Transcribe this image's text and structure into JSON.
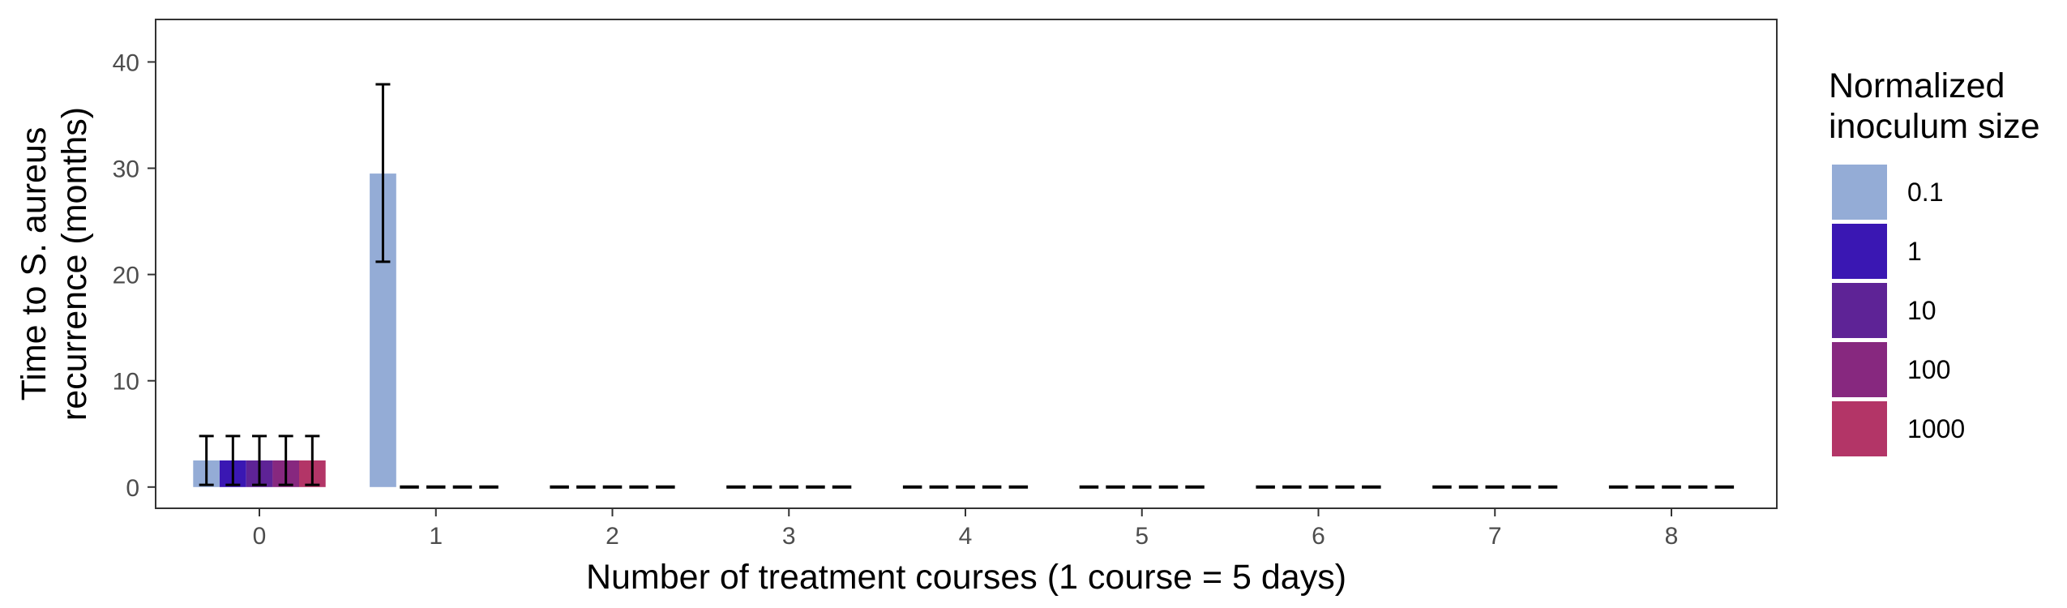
{
  "chart_data": {
    "type": "bar",
    "xlabel": "Number of treatment courses (1 course = 5 days)",
    "ylabel_lines": [
      "Time to S. aureus",
      "recurrence (months)"
    ],
    "categories": [
      "0",
      "1",
      "2",
      "3",
      "4",
      "5",
      "6",
      "7",
      "8"
    ],
    "ylim": [
      -2,
      44
    ],
    "y_ticks": [
      "0",
      "10",
      "20",
      "30",
      "40"
    ],
    "grid": false,
    "legend": {
      "title_lines": [
        "Normalized",
        "inoculum size"
      ],
      "placement": "right"
    },
    "series": [
      {
        "name": "0.1",
        "color": "#94ACD6",
        "values": [
          2.5,
          29.5,
          0,
          0,
          0,
          0,
          0,
          0,
          0
        ],
        "err_low": [
          0.2,
          21.2,
          null,
          null,
          null,
          null,
          null,
          null,
          null
        ],
        "err_high": [
          4.8,
          37.9,
          null,
          null,
          null,
          null,
          null,
          null,
          null
        ]
      },
      {
        "name": "1",
        "color": "#3A17B3",
        "values": [
          2.5,
          0,
          0,
          0,
          0,
          0,
          0,
          0,
          0
        ],
        "err_low": [
          0.2,
          null,
          null,
          null,
          null,
          null,
          null,
          null,
          null
        ],
        "err_high": [
          4.8,
          null,
          null,
          null,
          null,
          null,
          null,
          null,
          null
        ]
      },
      {
        "name": "10",
        "color": "#5E2396",
        "values": [
          2.5,
          0,
          0,
          0,
          0,
          0,
          0,
          0,
          0
        ],
        "err_low": [
          0.2,
          null,
          null,
          null,
          null,
          null,
          null,
          null,
          null
        ],
        "err_high": [
          4.8,
          null,
          null,
          null,
          null,
          null,
          null,
          null,
          null
        ]
      },
      {
        "name": "100",
        "color": "#87287F",
        "values": [
          2.5,
          0,
          0,
          0,
          0,
          0,
          0,
          0,
          0
        ],
        "err_low": [
          0.2,
          null,
          null,
          null,
          null,
          null,
          null,
          null,
          null
        ],
        "err_high": [
          4.8,
          null,
          null,
          null,
          null,
          null,
          null,
          null,
          null
        ]
      },
      {
        "name": "1000",
        "color": "#B33567",
        "values": [
          2.5,
          0,
          0,
          0,
          0,
          0,
          0,
          0,
          0
        ],
        "err_low": [
          0.2,
          null,
          null,
          null,
          null,
          null,
          null,
          null,
          null
        ],
        "err_high": [
          4.8,
          null,
          null,
          null,
          null,
          null,
          null,
          null,
          null
        ]
      }
    ]
  }
}
